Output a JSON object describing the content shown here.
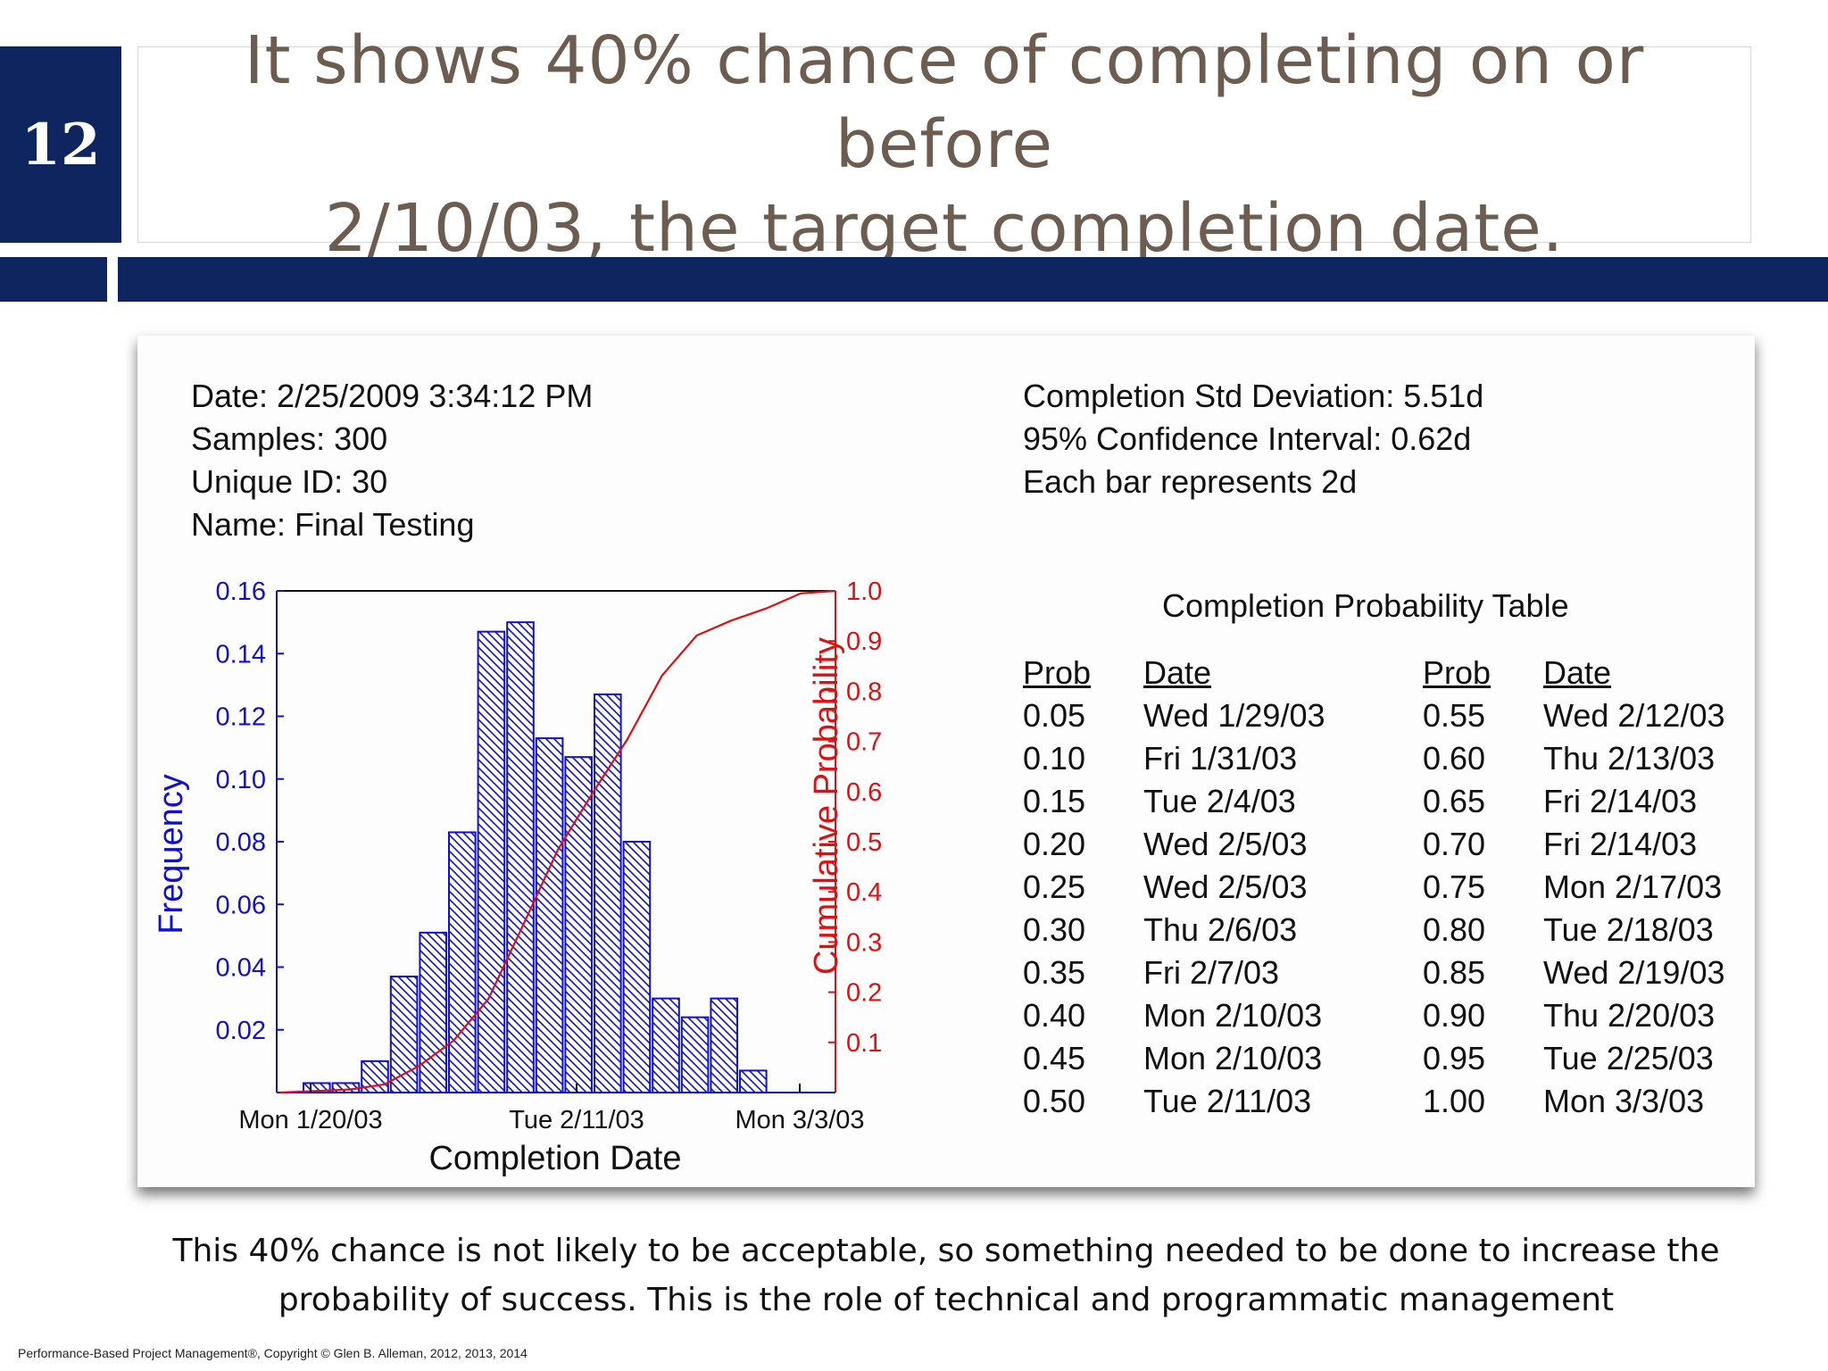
{
  "slide": {
    "number": "12",
    "title_line1": "It shows 40% chance of completing on or before",
    "title_line2": "2/10/03, the target completion date."
  },
  "info_left": [
    "Date: 2/25/2009 3:34:12 PM",
    "Samples: 300",
    "Unique ID: 30",
    "Name: Final Testing"
  ],
  "info_right": [
    "Completion Std Deviation: 5.51d",
    "95% Confidence Interval: 0.62d",
    "Each bar represents 2d"
  ],
  "prob_table": {
    "title": "Completion Probability Table",
    "headers": [
      "Prob",
      "Date",
      "Prob",
      "Date"
    ],
    "left_probs": [
      "0.05",
      "0.10",
      "0.15",
      "0.20",
      "0.25",
      "0.30",
      "0.35",
      "0.40",
      "0.45",
      "0.50"
    ],
    "left_dates": [
      "Wed 1/29/03",
      "Fri 1/31/03",
      "Tue 2/4/03",
      "Wed 2/5/03",
      "Wed 2/5/03",
      "Thu 2/6/03",
      "Fri 2/7/03",
      "Mon 2/10/03",
      "Mon 2/10/03",
      "Tue 2/11/03"
    ],
    "right_probs": [
      "0.55",
      "0.60",
      "0.65",
      "0.70",
      "0.75",
      "0.80",
      "0.85",
      "0.90",
      "0.95",
      "1.00"
    ],
    "right_dates": [
      "Wed 2/12/03",
      "Thu 2/13/03",
      "Fri 2/14/03",
      "Fri 2/14/03",
      "Mon 2/17/03",
      "Tue 2/18/03",
      "Wed 2/19/03",
      "Thu 2/20/03",
      "Tue 2/25/03",
      "Mon 3/3/03"
    ]
  },
  "chart_data": {
    "type": "bar",
    "xlabel": "Completion Date",
    "ylabel": "Frequency",
    "y2label": "Cumulative Probability",
    "ylim": [
      0,
      0.16
    ],
    "y2lim": [
      0,
      1.0
    ],
    "yticks": [
      "0.02",
      "0.04",
      "0.06",
      "0.08",
      "0.10",
      "0.12",
      "0.14",
      "0.16"
    ],
    "y2ticks": [
      "0.1",
      "0.2",
      "0.3",
      "0.4",
      "0.5",
      "0.6",
      "0.7",
      "0.8",
      "0.9",
      "1.0"
    ],
    "xticks": [
      "Mon 1/20/03",
      "Tue 2/11/03",
      "Mon 3/3/03"
    ],
    "bar_frequency": [
      0.003,
      0.003,
      0.01,
      0.037,
      0.051,
      0.083,
      0.147,
      0.15,
      0.113,
      0.107,
      0.127,
      0.08,
      0.03,
      0.024,
      0.03,
      0.007
    ],
    "cumulative_probability": [
      0.0,
      0.003,
      0.006,
      0.016,
      0.053,
      0.104,
      0.187,
      0.334,
      0.484,
      0.597,
      0.704,
      0.831,
      0.911,
      0.941,
      0.965,
      0.995,
      1.0
    ],
    "colors": {
      "bars": "#1010d0",
      "cumulative": "#e01010",
      "axes": "#111111"
    }
  },
  "caption_line1": "This 40% chance is not likely to be acceptable, so something needed to be done to increase the",
  "caption_line2": "probability of success. This is the role of technical and programmatic management",
  "footer": "Performance-Based Project Management®, Copyright © Glen B. Alleman, 2012, 2013, 2014"
}
